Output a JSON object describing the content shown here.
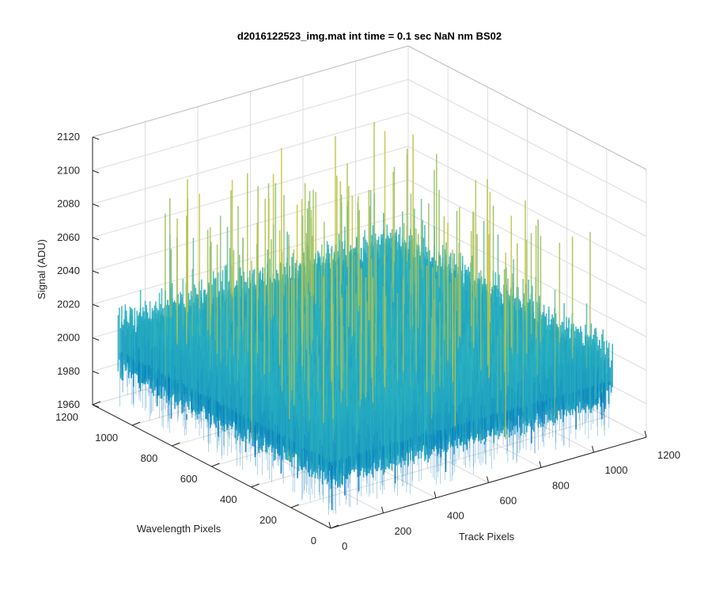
{
  "chart_data": {
    "type": "surface",
    "title": "d2016122523_img.mat int time = 0.1 sec  NaN nm BS02",
    "xlabel": "Track Pixels",
    "ylabel": "Wavelength Pixels",
    "zlabel": "Signal (ADU)",
    "xlim": [
      0,
      1200
    ],
    "ylim": [
      0,
      1200
    ],
    "zlim": [
      1960,
      2120
    ],
    "x_ticks": [
      "0",
      "200",
      "400",
      "600",
      "800",
      "1000",
      "1200"
    ],
    "y_ticks": [
      "0",
      "200",
      "400",
      "600",
      "800",
      "1000",
      "1200"
    ],
    "z_ticks": [
      "1960",
      "1980",
      "2000",
      "2020",
      "2040",
      "2060",
      "2080",
      "2100",
      "2120"
    ],
    "x_range": [
      1,
      1072
    ],
    "y_range": [
      1,
      1072
    ],
    "z_typical": [
      1985,
      2045
    ],
    "z_max_spikes": 2100,
    "z_min_spikes": 1968,
    "grid": true,
    "colormap": "parula",
    "colors": {
      "low": "#0072bd",
      "mid": "#2bb3c0",
      "high": "#c7c43a"
    }
  }
}
